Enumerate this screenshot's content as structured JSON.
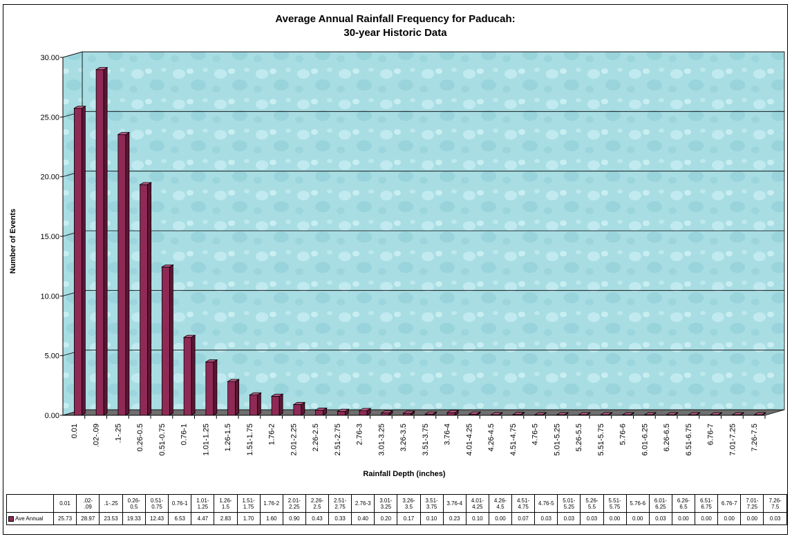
{
  "colors": {
    "bar_front": "#8e2a55",
    "bar_side": "#5c1634",
    "bar_top": "#c05a86",
    "wall": "#a8dde3",
    "floor": "#6e6e6e"
  },
  "chart_data": {
    "type": "bar",
    "title": "Average Annual Rainfall Frequency for Paducah:",
    "subtitle": "30-year Historic Data",
    "xlabel": "Rainfall Depth (inches)",
    "ylabel": "Number of Events",
    "ylim": [
      0,
      30
    ],
    "yticks": [
      "0.00",
      "5.00",
      "10.00",
      "15.00",
      "20.00",
      "25.00",
      "30.00"
    ],
    "grid": true,
    "categories": [
      "0.01",
      ".02-.09",
      ".1-.25",
      "0.26-0.5",
      "0.51-0.75",
      "0.76-1",
      "1.01-1.25",
      "1.26-1.5",
      "1.51-1.75",
      "1.76-2",
      "2.01-2.25",
      "2.26-2.5",
      "2.51-2.75",
      "2.76-3",
      "3.01-3.25",
      "3.26-3.5",
      "3.51-3.75",
      "3.76-4",
      "4.01-4.25",
      "4.26-4.5",
      "4.51-4.75",
      "4.76-5",
      "5.01-5.25",
      "5.26-5.5",
      "5.51-5.75",
      "5.76-6",
      "6.01-6.25",
      "6.26-6.5",
      "6.51-6.75",
      "6.76-7",
      "7.01-7.25",
      "7.26-7.5"
    ],
    "table_headers": [
      "0.01",
      ".02-\n.09",
      ".1-.25",
      "0.26-\n0.5",
      "0.51-\n0.75",
      "0.76-1",
      "1.01-\n1.25",
      "1.26-\n1.5",
      "1.51-\n1.75",
      "1.76-2",
      "2.01-\n2.25",
      "2.26-\n2.5",
      "2.51-\n2.75",
      "2.76-3",
      "3.01-\n3.25",
      "3.26-\n3.5",
      "3.51-\n3.75",
      "3.76-4",
      "4.01-\n4.25",
      "4.26-\n4.5",
      "4.51-\n4.75",
      "4.76-5",
      "5.01-\n5.25",
      "5.26-\n5.5",
      "5.51-\n5.75",
      "5.76-6",
      "6.01-\n6.25",
      "6.26-\n6.5",
      "6.51-\n6.75",
      "6.76-7",
      "7.01-\n7.25",
      "7.26-\n7.5"
    ],
    "series": [
      {
        "name": "Ave Annual",
        "values": [
          25.73,
          28.97,
          23.53,
          19.33,
          12.43,
          6.53,
          4.47,
          2.83,
          1.7,
          1.6,
          0.9,
          0.43,
          0.33,
          0.4,
          0.2,
          0.17,
          0.1,
          0.23,
          0.1,
          0.0,
          0.07,
          0.03,
          0.03,
          0.03,
          0.0,
          0.0,
          0.03,
          0.0,
          0.0,
          0.0,
          0.0,
          0.03
        ],
        "labels": [
          "25.73",
          "28.97",
          "23.53",
          "19.33",
          "12.43",
          "6.53",
          "4.47",
          "2.83",
          "1.70",
          "1.60",
          "0.90",
          "0.43",
          "0.33",
          "0.40",
          "0.20",
          "0.17",
          "0.10",
          "0.23",
          "0.10",
          "0.00",
          "0.07",
          "0.03",
          "0.03",
          "0.03",
          "0.00",
          "0.00",
          "0.03",
          "0.00",
          "0.00",
          "0.00",
          "0.00",
          "0.03"
        ]
      }
    ]
  }
}
